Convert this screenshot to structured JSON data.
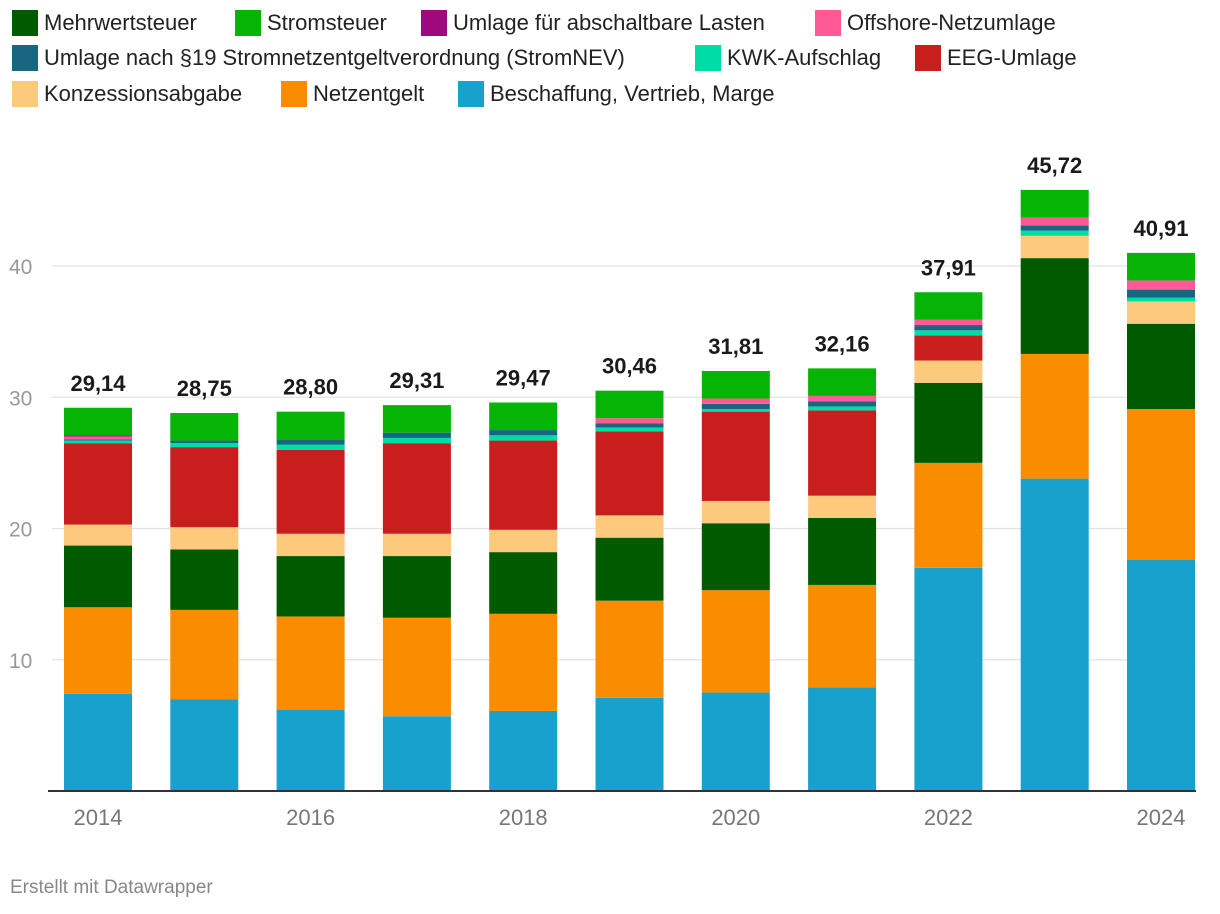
{
  "chart_data": {
    "type": "bar",
    "stacked": true,
    "title": "",
    "xlabel": "",
    "ylabel": "",
    "ylim": [
      0,
      48
    ],
    "y_ticks": [
      10,
      20,
      30,
      40
    ],
    "x_tick_labels": [
      "2014",
      "2016",
      "2018",
      "2020",
      "2022",
      "2024"
    ],
    "categories": [
      "2014",
      "2015",
      "2016",
      "2017",
      "2018",
      "2019",
      "2020",
      "2021",
      "2022",
      "2023",
      "2024"
    ],
    "totals": [
      "29,14",
      "28,75",
      "28,80",
      "29,31",
      "29,47",
      "30,46",
      "31,81",
      "32,16",
      "37,91",
      "45,72",
      "40,91"
    ],
    "series": [
      {
        "name": "Beschaffung, Vertrieb, Marge",
        "color": "#18a1cd",
        "values": [
          7.4,
          7.0,
          6.2,
          5.7,
          6.1,
          7.1,
          7.5,
          7.9,
          17.0,
          23.8,
          17.6
        ]
      },
      {
        "name": "Netzentgelt",
        "color": "#fa8c00",
        "values": [
          6.6,
          6.8,
          7.1,
          7.5,
          7.4,
          7.4,
          7.8,
          7.8,
          8.0,
          9.5,
          11.5
        ]
      },
      {
        "name": "Mehrwertsteuer",
        "color": "#005a00",
        "values": [
          4.7,
          4.6,
          4.6,
          4.7,
          4.7,
          4.8,
          5.1,
          5.1,
          6.1,
          7.3,
          6.5
        ]
      },
      {
        "name": "Konzessionsabgabe",
        "color": "#fdc97c",
        "values": [
          1.6,
          1.7,
          1.7,
          1.7,
          1.7,
          1.7,
          1.7,
          1.7,
          1.7,
          1.7,
          1.7
        ]
      },
      {
        "name": "EEG-Umlage",
        "color": "#c81e1e",
        "values": [
          6.2,
          6.1,
          6.4,
          6.9,
          6.8,
          6.4,
          6.8,
          6.5,
          1.9,
          0.0,
          0.0
        ]
      },
      {
        "name": "KWK-Aufschlag",
        "color": "#00dca5",
        "values": [
          0.2,
          0.3,
          0.4,
          0.4,
          0.4,
          0.3,
          0.2,
          0.3,
          0.4,
          0.4,
          0.3
        ]
      },
      {
        "name": "Umlage nach §19 Stromnetzentgeltverordnung (StromNEV)",
        "color": "#1a6680",
        "values": [
          0.1,
          0.2,
          0.4,
          0.4,
          0.4,
          0.3,
          0.4,
          0.4,
          0.4,
          0.4,
          0.6
        ]
      },
      {
        "name": "Offshore-Netzumlage",
        "color": "#ff5a96",
        "values": [
          0.2,
          0.0,
          0.0,
          0.0,
          0.0,
          0.4,
          0.4,
          0.4,
          0.4,
          0.6,
          0.7
        ]
      },
      {
        "name": "Umlage für abschaltbare Lasten",
        "color": "#a0087d",
        "values": [
          0.1,
          0.0,
          0.0,
          0.0,
          0.0,
          0.0,
          0.0,
          0.0,
          0.0,
          0.0,
          0.0
        ]
      },
      {
        "name": "Stromsteuer",
        "color": "#05b405",
        "values": [
          2.1,
          2.1,
          2.1,
          2.1,
          2.1,
          2.1,
          2.1,
          2.1,
          2.1,
          2.1,
          2.1
        ]
      }
    ],
    "legend": [
      {
        "name": "Mehrwertsteuer",
        "color": "#005a00"
      },
      {
        "name": "Stromsteuer",
        "color": "#05b405"
      },
      {
        "name": "Umlage für abschaltbare Lasten",
        "color": "#a0087d"
      },
      {
        "name": "Offshore-Netzumlage",
        "color": "#ff5a96"
      },
      {
        "name": "Umlage nach §19 Stromnetzentgeltverordnung (StromNEV)",
        "color": "#1a6680"
      },
      {
        "name": "KWK-Aufschlag",
        "color": "#00dca5"
      },
      {
        "name": "EEG-Umlage",
        "color": "#c81e1e"
      },
      {
        "name": "Konzessionsabgabe",
        "color": "#fdc97c"
      },
      {
        "name": "Netzentgelt",
        "color": "#fa8c00"
      },
      {
        "name": "Beschaffung, Vertrieb, Marge",
        "color": "#18a1cd"
      }
    ],
    "legend_position": "top",
    "grid": true
  },
  "footer": {
    "credit": "Erstellt mit Datawrapper"
  }
}
